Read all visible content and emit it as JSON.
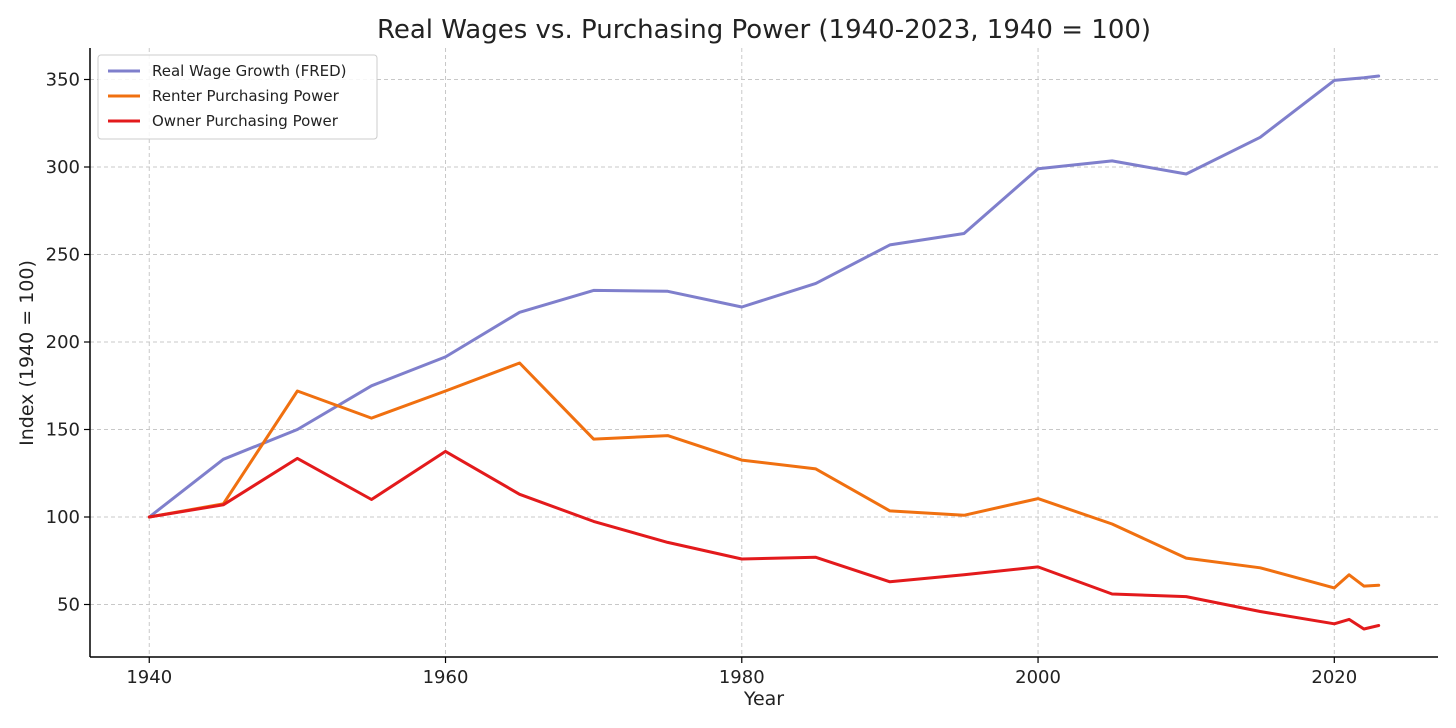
{
  "chart_data": {
    "type": "line",
    "title": "Real Wages vs. Purchasing Power (1940-2023, 1940 = 100)",
    "xlabel": "Year",
    "ylabel": "Index (1940 = 100)",
    "xlim": [
      1936,
      2027
    ],
    "ylim": [
      20,
      368
    ],
    "xticks": [
      1940,
      1960,
      1980,
      2000,
      2020
    ],
    "yticks": [
      50,
      100,
      150,
      200,
      250,
      300,
      350
    ],
    "grid": true,
    "legend_position": "top-left",
    "x": [
      1940,
      1945,
      1950,
      1955,
      1960,
      1965,
      1970,
      1975,
      1980,
      1985,
      1990,
      1995,
      2000,
      2005,
      2010,
      2015,
      2020,
      2021,
      2022,
      2023
    ],
    "series": [
      {
        "name": "Real Wage Growth (FRED)",
        "color": "#7f7fcc",
        "values": [
          100,
          133,
          150,
          175,
          191.5,
          217,
          229.5,
          229,
          220,
          233.5,
          255.5,
          262,
          299,
          303.5,
          296,
          317,
          349.5,
          null,
          351,
          352
        ]
      },
      {
        "name": "Renter Purchasing Power",
        "color": "#f07010",
        "values": [
          100,
          107.5,
          172,
          156.5,
          172,
          188,
          144.5,
          146.5,
          132.5,
          127.5,
          103.5,
          101,
          110.5,
          96,
          76.5,
          71,
          59.5,
          67,
          60.5,
          61
        ]
      },
      {
        "name": "Owner Purchasing Power",
        "color": "#e31a1c",
        "values": [
          100,
          107,
          133.5,
          110,
          137.5,
          113,
          97.5,
          85.5,
          76,
          77,
          63,
          67,
          71.5,
          56,
          54.5,
          46,
          39,
          41.5,
          36,
          38
        ]
      }
    ]
  }
}
